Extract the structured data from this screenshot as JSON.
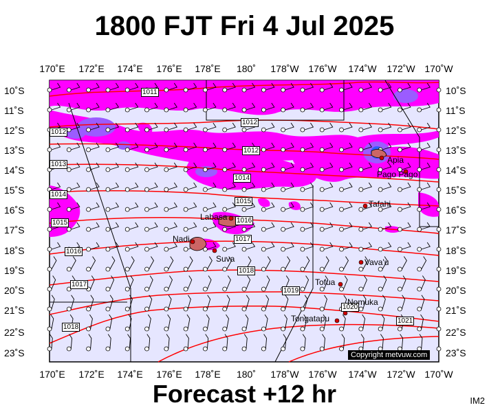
{
  "title": "1800 FJT Fri 4 Jul 2025",
  "footer": "Forecast +12 hr",
  "product_code": "IM2",
  "copyright": "Copyright metvuw.com",
  "colors": {
    "background_sea": "#e6e6ff",
    "rain": "#ff00ff",
    "heavy_rain": "#9b5cff",
    "very_heavy": "#2f5fff",
    "isobar": "#ff0000",
    "land": "#cc6666"
  },
  "longitude_labels": [
    "170˚E",
    "172˚E",
    "174˚E",
    "176˚E",
    "178˚E",
    "180˚",
    "178˚W",
    "176˚W",
    "174˚W",
    "172˚W",
    "170˚W"
  ],
  "latitude_labels": [
    "10˚S",
    "11˚S",
    "12˚S",
    "13˚S",
    "14˚S",
    "15˚S",
    "16˚S",
    "17˚S",
    "18˚S",
    "19˚S",
    "20˚S",
    "21˚S",
    "22˚S",
    "23˚S"
  ],
  "isobar_labels": [
    "1011",
    "1012",
    "1012",
    "1012",
    "1013",
    "1014",
    "1014",
    "1015",
    "1015",
    "1016",
    "1016",
    "1017",
    "1017",
    "1018",
    "1018",
    "1019",
    "1020",
    "1021"
  ],
  "places": [
    "Apia",
    "Pago Pago",
    "Tafahi",
    "Labasa",
    "Nadi",
    "Suva",
    "Vava'u",
    "Tofua",
    "Nomuka",
    "Tongatapu"
  ]
}
